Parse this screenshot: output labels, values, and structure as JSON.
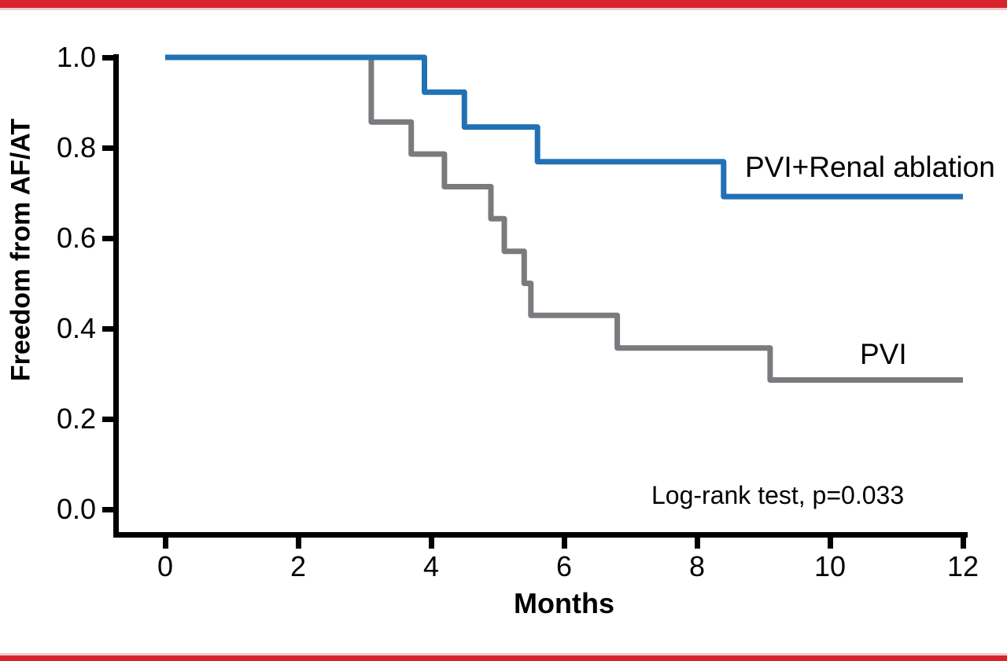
{
  "figure": {
    "background": "#ffffff",
    "border_color": "#d7232e",
    "border_soft_color": "#f2caca",
    "text_color": "#000000"
  },
  "chart_data": {
    "type": "line",
    "style": "kaplan-meier-step",
    "title": "",
    "xlabel": "Months",
    "ylabel": "Freedom from AF/AT",
    "annotation": "Log-rank test, p=0.033",
    "xlim": [
      0,
      12
    ],
    "ylim": [
      0.0,
      1.0
    ],
    "x_ticks": [
      0,
      2,
      4,
      6,
      8,
      10,
      12
    ],
    "y_ticks": [
      1.0,
      0.8,
      0.6,
      0.4,
      0.2,
      0.0
    ],
    "grid": false,
    "legend_position": "labels-at-line-ends",
    "series": [
      {
        "name": "PVI+Renal ablation",
        "color": "#2171b5",
        "steps": [
          [
            0,
            1.0
          ],
          [
            3.9,
            0.923
          ],
          [
            4.5,
            0.846
          ],
          [
            5.6,
            0.769
          ],
          [
            8.4,
            0.692
          ]
        ],
        "end_time": 12
      },
      {
        "name": "PVI",
        "color": "#797b7e",
        "steps": [
          [
            0,
            1.0
          ],
          [
            3.1,
            0.857
          ],
          [
            3.7,
            0.786
          ],
          [
            4.2,
            0.714
          ],
          [
            4.9,
            0.643
          ],
          [
            5.1,
            0.571
          ],
          [
            5.4,
            0.5
          ],
          [
            5.5,
            0.429
          ],
          [
            6.8,
            0.357
          ],
          [
            9.1,
            0.286
          ]
        ],
        "end_time": 12
      }
    ]
  }
}
